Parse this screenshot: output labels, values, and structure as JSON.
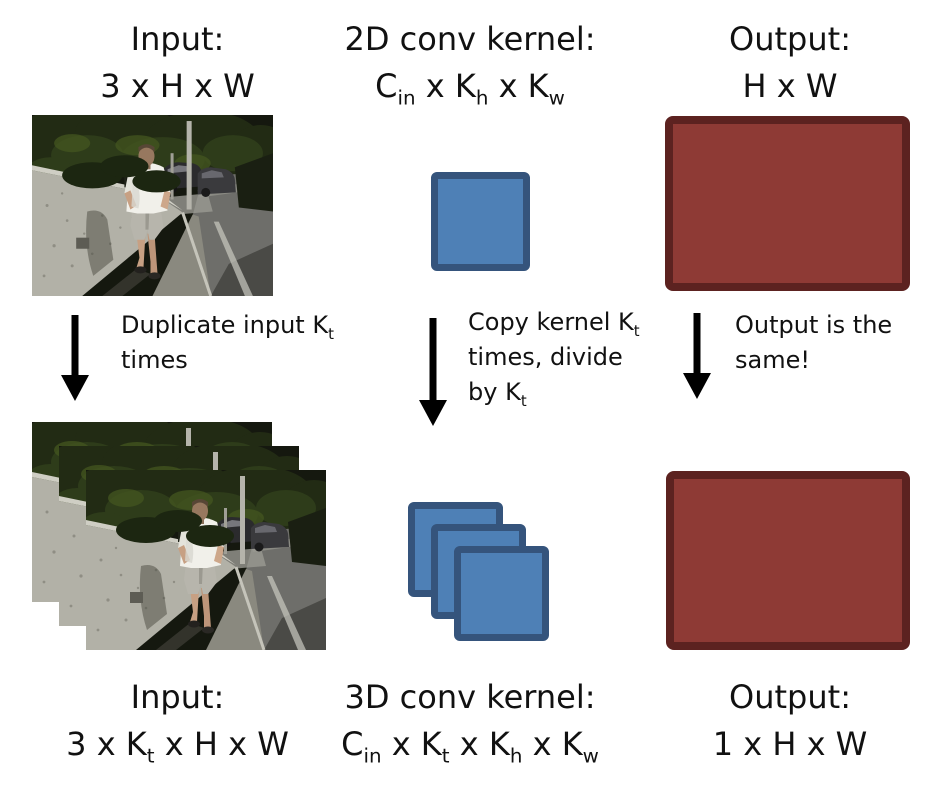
{
  "diagram": {
    "top": {
      "input": {
        "title": "Input:",
        "dims": [
          {
            "t": "3 x H x W"
          }
        ]
      },
      "kernel": {
        "title": "2D conv kernel:",
        "dims": [
          {
            "t": "C"
          },
          {
            "t": "in",
            "sub": true
          },
          {
            "t": " x K"
          },
          {
            "t": "h",
            "sub": true
          },
          {
            "t": " x K"
          },
          {
            "t": "w",
            "sub": true
          }
        ]
      },
      "output": {
        "title": "Output:",
        "dims": [
          {
            "t": "H x W"
          }
        ]
      }
    },
    "transforms": {
      "input": [
        {
          "t": "Duplicate input K"
        },
        {
          "t": "t",
          "sub": true
        },
        {
          "t": " times"
        }
      ],
      "kernel": [
        {
          "t": "Copy kernel K"
        },
        {
          "t": "t",
          "sub": true
        },
        {
          "t": " times, divide by K"
        },
        {
          "t": "t",
          "sub": true
        }
      ],
      "output": [
        {
          "t": "Output is the same!"
        }
      ]
    },
    "bottom": {
      "input": {
        "title": "Input:",
        "dims": [
          {
            "t": "3 x K"
          },
          {
            "t": "t",
            "sub": true
          },
          {
            "t": " x H x W"
          }
        ]
      },
      "kernel": {
        "title": "3D conv kernel:",
        "dims": [
          {
            "t": "C"
          },
          {
            "t": "in",
            "sub": true
          },
          {
            "t": " x K"
          },
          {
            "t": "t",
            "sub": true
          },
          {
            "t": " x K"
          },
          {
            "t": "h",
            "sub": true
          },
          {
            "t": " x K"
          },
          {
            "t": "w",
            "sub": true
          }
        ]
      },
      "output": {
        "title": "Output:",
        "dims": [
          {
            "t": "1 x H x W"
          }
        ]
      }
    },
    "colors": {
      "kernel_fill": "#4E80B6",
      "kernel_border": "#35547C",
      "output_fill": "#8E3A35",
      "output_border": "#5C2220",
      "arrow": "#000000",
      "background": "#FFFFFF"
    }
  }
}
